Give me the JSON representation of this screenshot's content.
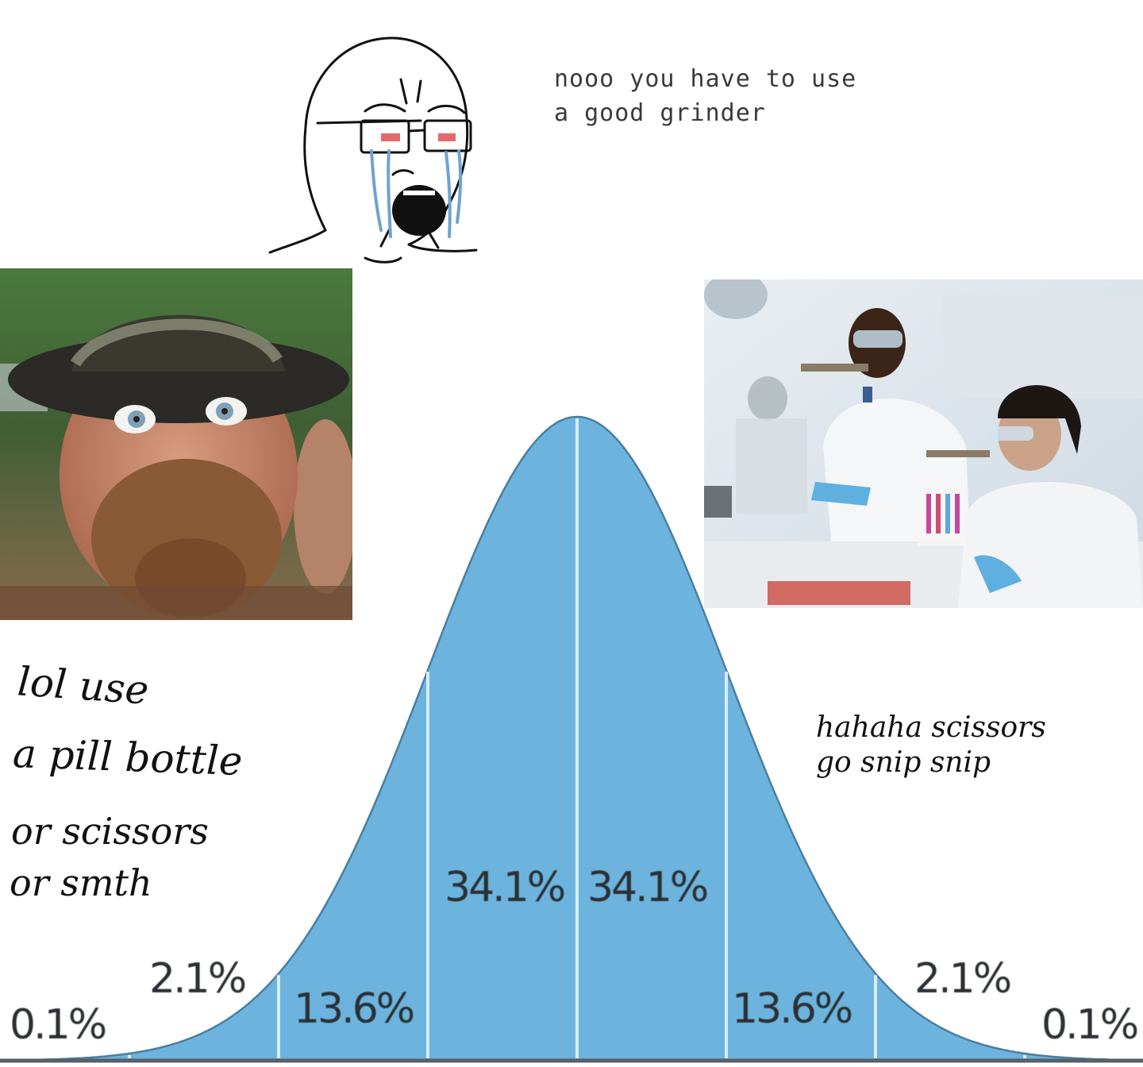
{
  "captions": {
    "top_line1": "nooo you have to use",
    "top_line2": "a good grinder",
    "left_line1": "lol use",
    "left_line2": "a pill bottle",
    "left_line3": "or scissors",
    "left_line4": "or smth",
    "right_line1": "hahaha scissors",
    "right_line2": "go snip snip"
  },
  "distribution": {
    "labels": {
      "far_left": "0.1%",
      "left_tail": "2.1%",
      "left_mid": "13.6%",
      "left_center": "34.1%",
      "right_center": "34.1%",
      "right_mid": "13.6%",
      "right_tail": "2.1%",
      "far_right": "0.1%"
    },
    "fill_color": "#6cb4de",
    "divider_color": "#d8ecf7",
    "outline_color": "#4a7fa0"
  },
  "images": {
    "left": "hillbilly-photo",
    "center": "crying-wojak",
    "right": "lab-scientists-photo"
  }
}
